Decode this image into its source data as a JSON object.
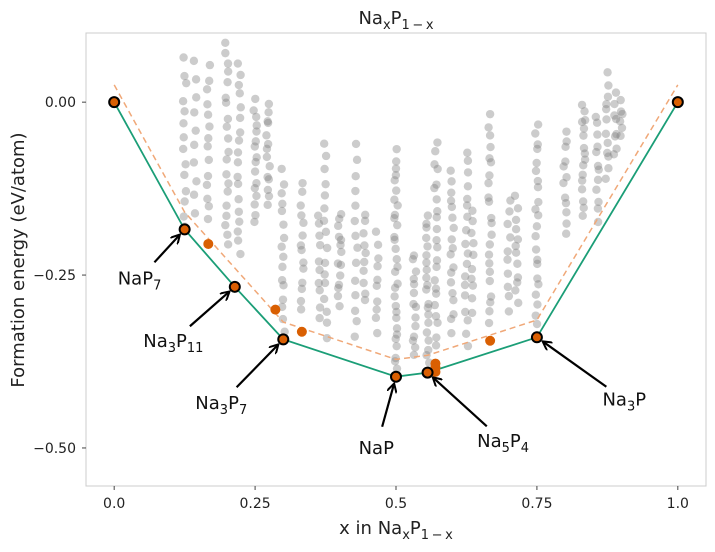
{
  "chart_data": {
    "type": "scatter",
    "title": {
      "base": "Na",
      "sub1": "x",
      "mid": "P",
      "sub2": "1 − x"
    },
    "xlabel": {
      "prefix": "x in ",
      "base": "Na",
      "sub1": "x",
      "mid": "P",
      "sub2": "1 − x"
    },
    "ylabel": "Formation energy (eV/atom)",
    "xlim": [
      -0.05,
      1.05
    ],
    "ylim": [
      -0.555,
      0.1
    ],
    "xticks": [
      {
        "value": 0.0,
        "label": "0.0"
      },
      {
        "value": 0.25,
        "label": "0.25"
      },
      {
        "value": 0.5,
        "label": "0.5"
      },
      {
        "value": 0.75,
        "label": "0.75"
      },
      {
        "value": 1.0,
        "label": "1.0"
      }
    ],
    "yticks": [
      {
        "value": 0.0,
        "label": "0.00"
      },
      {
        "value": -0.25,
        "label": "−0.25"
      },
      {
        "value": -0.5,
        "label": "−0.50"
      }
    ],
    "grid": false,
    "colors": {
      "hull": "#1b9e77",
      "dashed": "#f0a878",
      "scatter": "#7f7f7f",
      "stable_fill": "#d95f02",
      "stable_edge": "#000000",
      "near_hull": "#d95f02"
    },
    "series": [
      {
        "kind": "convex_hull",
        "x": [
          0.0,
          0.125,
          0.214,
          0.3,
          0.5,
          0.556,
          0.75,
          1.0
        ],
        "y": [
          0.0,
          -0.184,
          -0.267,
          -0.343,
          -0.397,
          -0.391,
          -0.34,
          0.0
        ]
      },
      {
        "kind": "dashed_offset",
        "x": [
          0.0,
          0.125,
          0.3,
          0.5,
          0.556,
          0.75,
          1.0
        ],
        "y": [
          0.025,
          -0.159,
          -0.318,
          -0.372,
          -0.366,
          -0.315,
          0.025
        ]
      },
      {
        "kind": "stable",
        "x": [
          0.0,
          0.125,
          0.214,
          0.3,
          0.5,
          0.556,
          1.0,
          0.75
        ],
        "y": [
          0.0,
          -0.184,
          -0.267,
          -0.343,
          -0.397,
          -0.391,
          0.0,
          -0.34
        ]
      },
      {
        "kind": "near_hull",
        "x": [
          0.167,
          0.286,
          0.333,
          0.57,
          0.57,
          0.57,
          0.667
        ],
        "y": [
          -0.205,
          -0.3,
          -0.332,
          -0.378,
          -0.384,
          -0.39,
          -0.345
        ]
      },
      {
        "kind": "candidates",
        "columns": [
          {
            "x": 0.125,
            "ymin": -0.18,
            "ymax": 0.06,
            "n": 14
          },
          {
            "x": 0.143,
            "ymin": -0.16,
            "ymax": 0.06,
            "n": 10
          },
          {
            "x": 0.167,
            "ymin": -0.17,
            "ymax": 0.05,
            "n": 14
          },
          {
            "x": 0.2,
            "ymin": -0.21,
            "ymax": 0.09,
            "n": 20
          },
          {
            "x": 0.222,
            "ymin": -0.22,
            "ymax": 0.06,
            "n": 18
          },
          {
            "x": 0.25,
            "ymin": -0.17,
            "ymax": 0.0,
            "n": 16
          },
          {
            "x": 0.273,
            "ymin": -0.15,
            "ymax": 0.0,
            "n": 14
          },
          {
            "x": 0.3,
            "ymin": -0.33,
            "ymax": -0.1,
            "n": 16
          },
          {
            "x": 0.333,
            "ymin": -0.3,
            "ymax": -0.12,
            "n": 14
          },
          {
            "x": 0.364,
            "ymin": -0.31,
            "ymax": -0.16,
            "n": 10
          },
          {
            "x": 0.375,
            "ymin": -0.34,
            "ymax": -0.06,
            "n": 16
          },
          {
            "x": 0.4,
            "ymin": -0.29,
            "ymax": -0.16,
            "n": 14
          },
          {
            "x": 0.429,
            "ymin": -0.34,
            "ymax": -0.06,
            "n": 14
          },
          {
            "x": 0.444,
            "ymin": -0.29,
            "ymax": -0.16,
            "n": 10
          },
          {
            "x": 0.467,
            "ymin": -0.33,
            "ymax": -0.19,
            "n": 10
          },
          {
            "x": 0.5,
            "ymin": -0.39,
            "ymax": -0.07,
            "n": 30
          },
          {
            "x": 0.533,
            "ymin": -0.37,
            "ymax": -0.22,
            "n": 14
          },
          {
            "x": 0.556,
            "ymin": -0.38,
            "ymax": -0.16,
            "n": 20
          },
          {
            "x": 0.571,
            "ymin": -0.35,
            "ymax": -0.06,
            "n": 22
          },
          {
            "x": 0.6,
            "ymin": -0.33,
            "ymax": -0.1,
            "n": 18
          },
          {
            "x": 0.625,
            "ymin": -0.35,
            "ymax": -0.07,
            "n": 18
          },
          {
            "x": 0.636,
            "ymin": -0.3,
            "ymax": -0.16,
            "n": 10
          },
          {
            "x": 0.667,
            "ymin": -0.32,
            "ymax": -0.02,
            "n": 22
          },
          {
            "x": 0.7,
            "ymin": -0.3,
            "ymax": -0.14,
            "n": 10
          },
          {
            "x": 0.714,
            "ymin": -0.29,
            "ymax": -0.14,
            "n": 12
          },
          {
            "x": 0.75,
            "ymin": -0.32,
            "ymax": -0.03,
            "n": 22
          },
          {
            "x": 0.8,
            "ymin": -0.19,
            "ymax": -0.04,
            "n": 12
          },
          {
            "x": 0.833,
            "ymin": -0.16,
            "ymax": 0.0,
            "n": 16
          },
          {
            "x": 0.857,
            "ymin": -0.17,
            "ymax": -0.02,
            "n": 12
          },
          {
            "x": 0.875,
            "ymin": -0.11,
            "ymax": 0.04,
            "n": 12
          },
          {
            "x": 0.889,
            "ymin": -0.08,
            "ymax": 0.01,
            "n": 8
          },
          {
            "x": 0.9,
            "ymin": -0.05,
            "ymax": 0.0,
            "n": 6
          }
        ]
      }
    ],
    "annotations": [
      {
        "x": 0.125,
        "y": -0.184,
        "lx": 0.045,
        "ly": -0.255,
        "parts": [
          "NaP",
          "7"
        ]
      },
      {
        "x": 0.214,
        "y": -0.267,
        "lx": 0.105,
        "ly": -0.345,
        "parts": [
          "Na",
          "3",
          "P",
          "11"
        ]
      },
      {
        "x": 0.3,
        "y": -0.343,
        "lx": 0.19,
        "ly": -0.435,
        "parts": [
          "Na",
          "3",
          "P",
          "7"
        ]
      },
      {
        "x": 0.5,
        "y": -0.397,
        "lx": 0.465,
        "ly": -0.5,
        "parts": [
          "NaP"
        ]
      },
      {
        "x": 0.556,
        "y": -0.391,
        "lx": 0.69,
        "ly": -0.49,
        "parts": [
          "Na",
          "5",
          "P",
          "4"
        ]
      },
      {
        "x": 0.75,
        "y": -0.34,
        "lx": 0.905,
        "ly": -0.43,
        "parts": [
          "Na",
          "3",
          "P"
        ]
      }
    ]
  }
}
